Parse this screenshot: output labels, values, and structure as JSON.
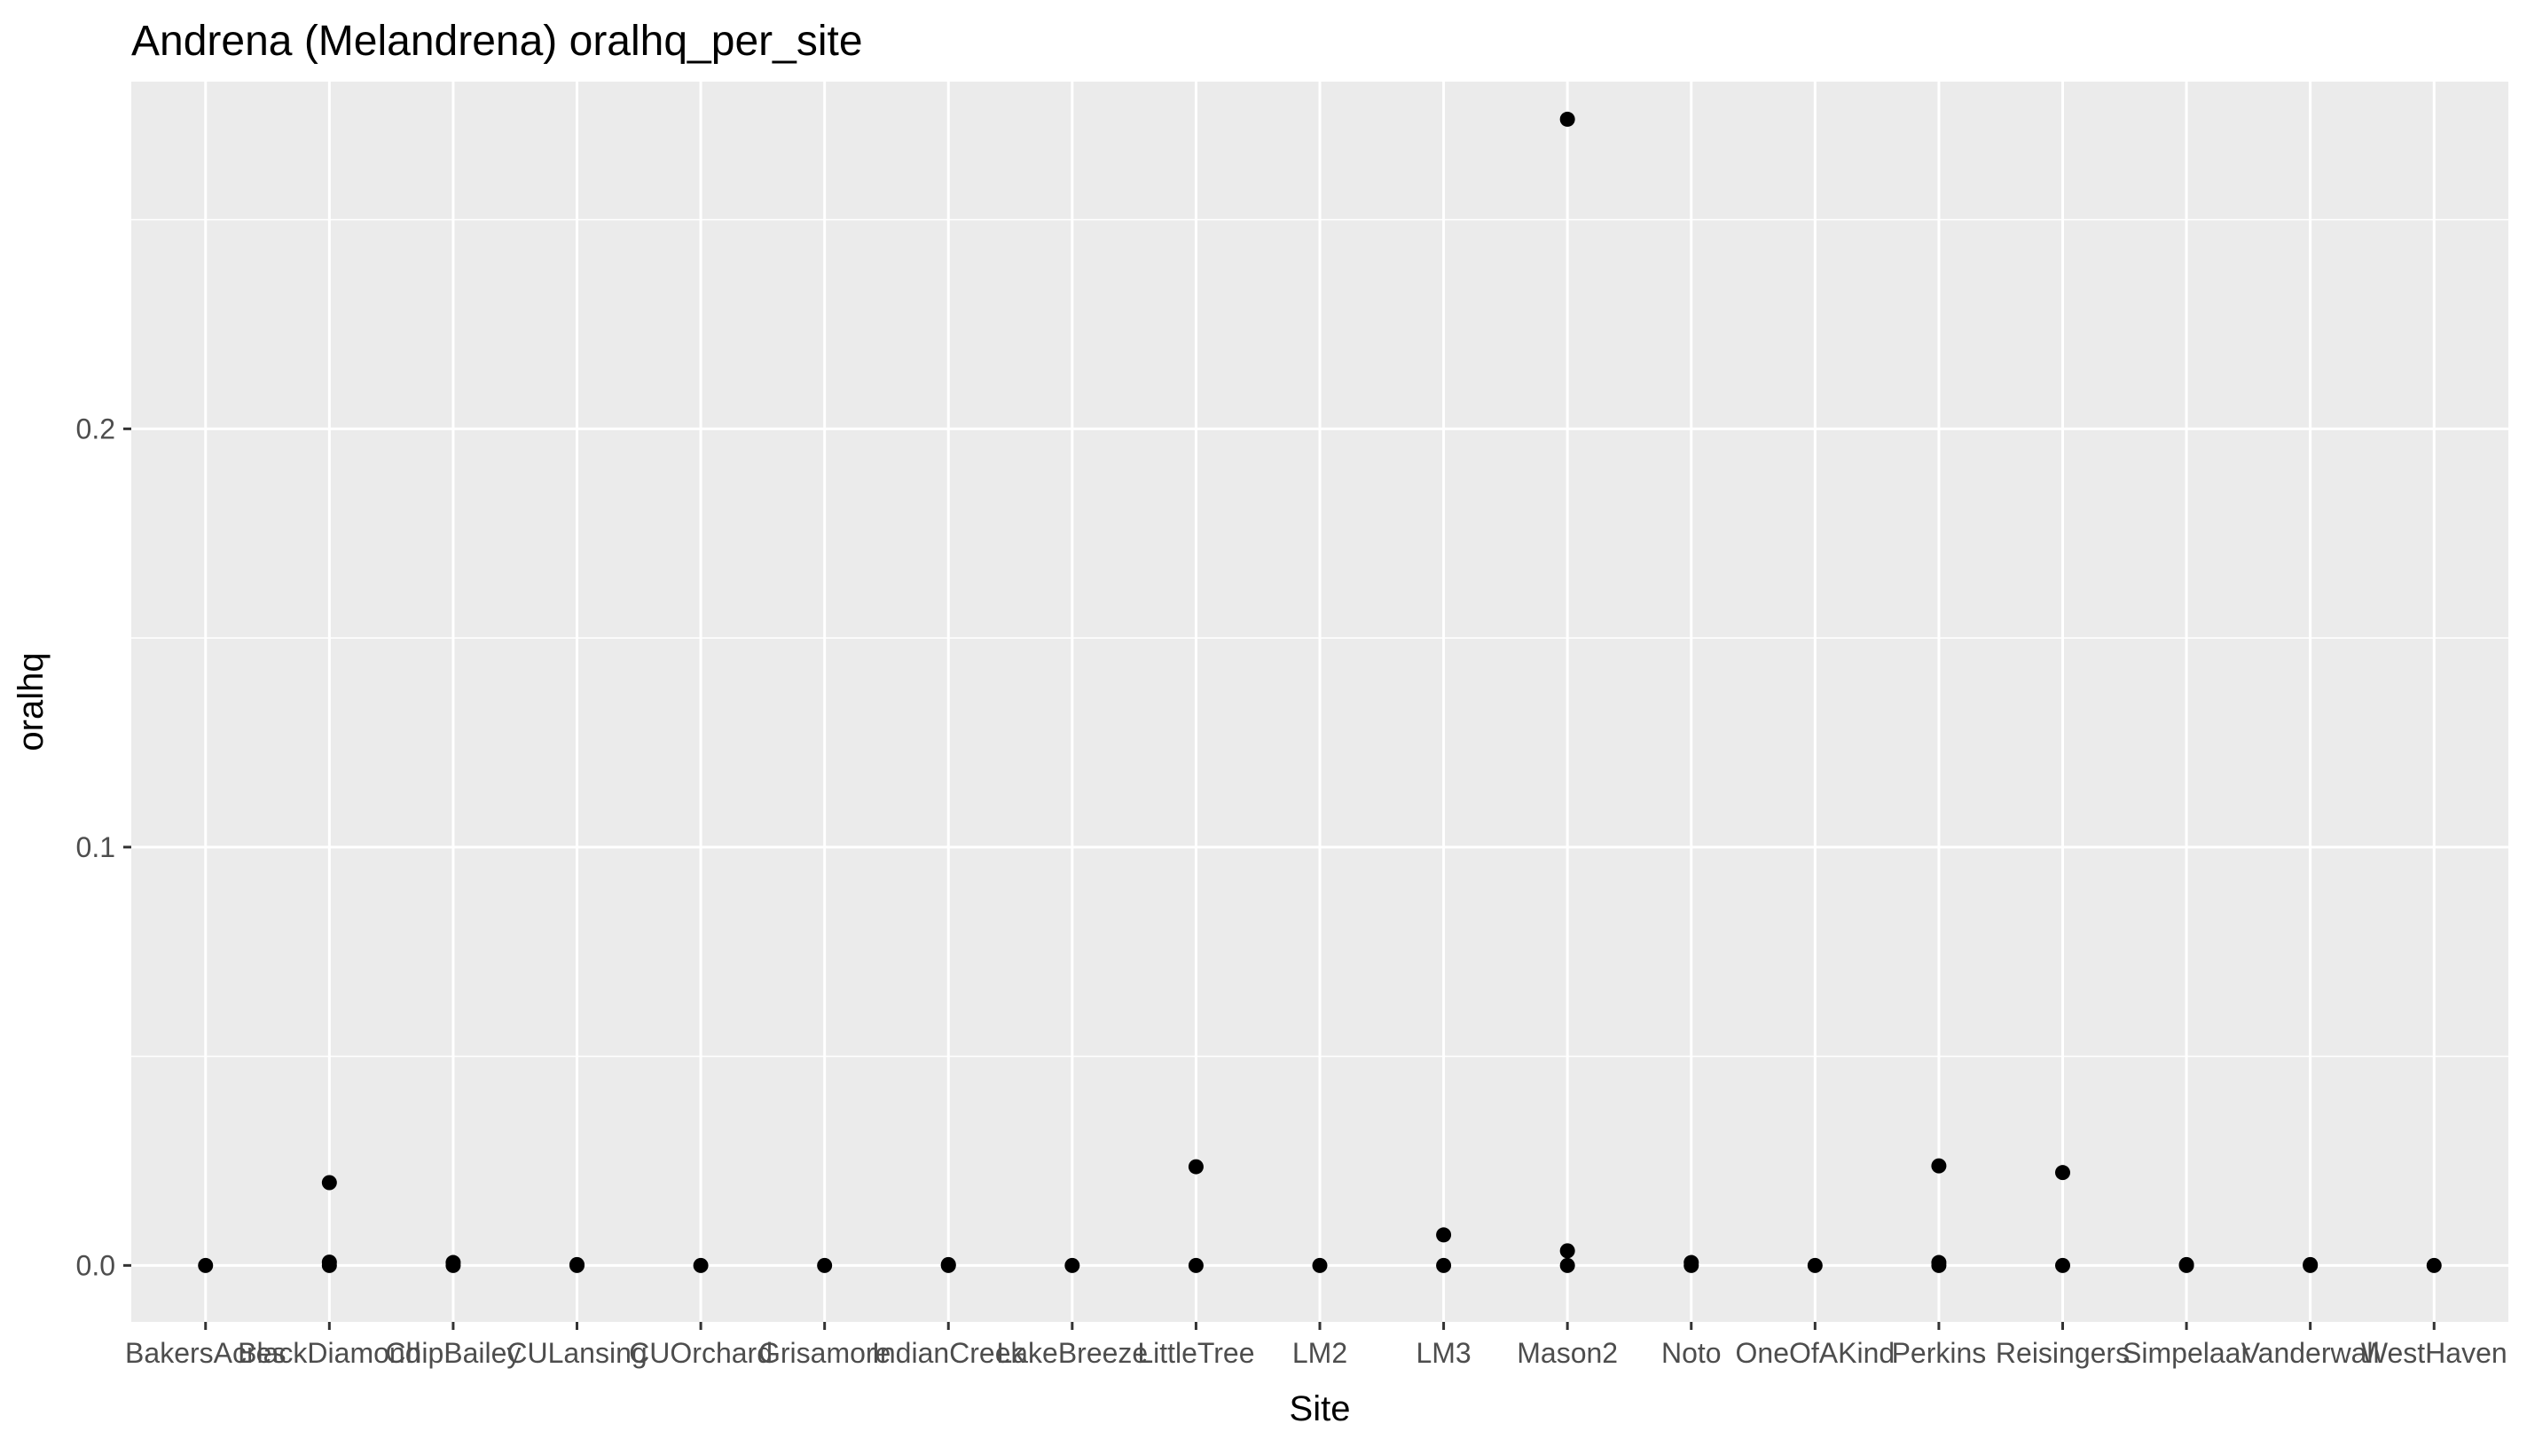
{
  "chart_data": {
    "type": "scatter",
    "title": "Andrena (Melandrena) oralhq_per_site",
    "xlabel": "Site",
    "ylabel": "oralhq",
    "categories": [
      "BakersAcres",
      "BlackDiamond",
      "ChipBailey",
      "CULansing",
      "CUOrchard",
      "Grisamore",
      "IndianCreek",
      "LakeBreeze",
      "LittleTree",
      "LM2",
      "LM3",
      "Mason2",
      "Noto",
      "OneOfAKind",
      "Perkins",
      "Reisingers",
      "Simpelaar",
      "Vanderwall",
      "WestHaven"
    ],
    "y_ticks": [
      0.0,
      0.1,
      0.2
    ],
    "y_tick_labels": [
      "0.0",
      "0.1",
      "0.2"
    ],
    "ylim": [
      -0.0135,
      0.283
    ],
    "grid": true,
    "background": "#EBEBEB",
    "grid_color": "#FFFFFF",
    "point_color": "#000000",
    "points": [
      {
        "site": "BakersAcres",
        "y": 0.0
      },
      {
        "site": "BlackDiamond",
        "y": 0.0198
      },
      {
        "site": "BlackDiamond",
        "y": 0.0008
      },
      {
        "site": "BlackDiamond",
        "y": 0.0
      },
      {
        "site": "ChipBailey",
        "y": 0.0007
      },
      {
        "site": "ChipBailey",
        "y": 0.0
      },
      {
        "site": "CULansing",
        "y": 0.0002
      },
      {
        "site": "CULansing",
        "y": 0.0
      },
      {
        "site": "CUOrchard",
        "y": 0.0
      },
      {
        "site": "Grisamore",
        "y": 0.0
      },
      {
        "site": "IndianCreek",
        "y": 0.0002
      },
      {
        "site": "IndianCreek",
        "y": 0.0
      },
      {
        "site": "LakeBreeze",
        "y": 0.0
      },
      {
        "site": "LittleTree",
        "y": 0.0236
      },
      {
        "site": "LittleTree",
        "y": 0.0
      },
      {
        "site": "LM2",
        "y": 0.0
      },
      {
        "site": "LM3",
        "y": 0.0073
      },
      {
        "site": "LM3",
        "y": 0.0
      },
      {
        "site": "Mason2",
        "y": 0.274
      },
      {
        "site": "Mason2",
        "y": 0.0035
      },
      {
        "site": "Mason2",
        "y": 0.0
      },
      {
        "site": "Noto",
        "y": 0.0007
      },
      {
        "site": "Noto",
        "y": 0.0
      },
      {
        "site": "OneOfAKind",
        "y": 0.0
      },
      {
        "site": "Perkins",
        "y": 0.0238
      },
      {
        "site": "Perkins",
        "y": 0.0007
      },
      {
        "site": "Perkins",
        "y": 0.0
      },
      {
        "site": "Reisingers",
        "y": 0.0222
      },
      {
        "site": "Reisingers",
        "y": 0.0
      },
      {
        "site": "Simpelaar",
        "y": 0.0002
      },
      {
        "site": "Simpelaar",
        "y": 0.0
      },
      {
        "site": "Vanderwall",
        "y": 0.0002
      },
      {
        "site": "Vanderwall",
        "y": 0.0
      },
      {
        "site": "WestHaven",
        "y": 0.0
      }
    ]
  }
}
